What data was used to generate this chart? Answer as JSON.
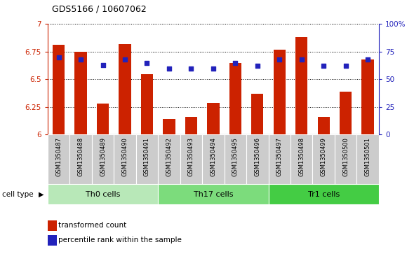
{
  "title": "GDS5166 / 10607062",
  "samples": [
    "GSM1350487",
    "GSM1350488",
    "GSM1350489",
    "GSM1350490",
    "GSM1350491",
    "GSM1350492",
    "GSM1350493",
    "GSM1350494",
    "GSM1350495",
    "GSM1350496",
    "GSM1350497",
    "GSM1350498",
    "GSM1350499",
    "GSM1350500",
    "GSM1350501"
  ],
  "bar_values": [
    6.81,
    6.75,
    6.28,
    6.82,
    6.55,
    6.14,
    6.16,
    6.29,
    6.65,
    6.37,
    6.77,
    6.88,
    6.16,
    6.39,
    6.68
  ],
  "dot_values": [
    70,
    68,
    63,
    68,
    65,
    60,
    60,
    60,
    65,
    62,
    68,
    68,
    62,
    62,
    68
  ],
  "bar_bottom": 6.0,
  "ylim_left": [
    6.0,
    7.0
  ],
  "ylim_right": [
    0,
    100
  ],
  "bar_color": "#cc2200",
  "dot_color": "#2222bb",
  "groups": [
    {
      "label": "Th0 cells",
      "start": 0,
      "end": 4,
      "color": "#b8e8b8"
    },
    {
      "label": "Th17 cells",
      "start": 5,
      "end": 9,
      "color": "#7cdc7c"
    },
    {
      "label": "Tr1 cells",
      "start": 10,
      "end": 14,
      "color": "#44cc44"
    }
  ],
  "cell_type_label": "cell type",
  "legend_bar_label": "transformed count",
  "legend_dot_label": "percentile rank within the sample",
  "yticks_left": [
    6.0,
    6.25,
    6.5,
    6.75,
    7.0
  ],
  "ytick_labels_left": [
    "6",
    "6.25",
    "6.5",
    "6.75",
    "7"
  ],
  "yticks_right": [
    0,
    25,
    50,
    75,
    100
  ],
  "ytick_labels_right": [
    "0",
    "25",
    "50",
    "75",
    "100%"
  ]
}
